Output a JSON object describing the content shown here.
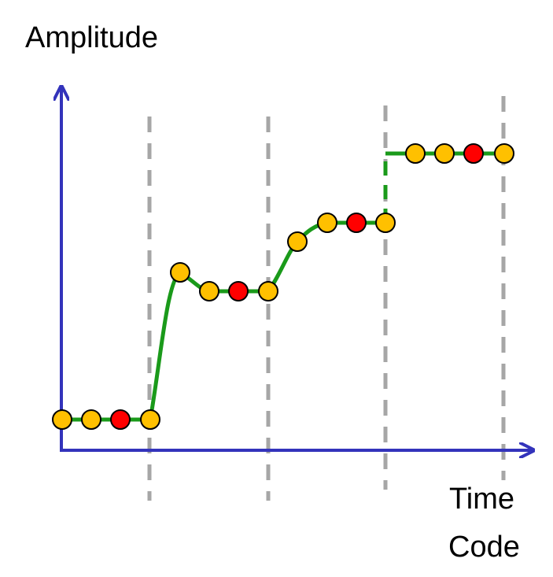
{
  "labels": {
    "y_axis": "Amplitude",
    "x_axis_line1": "Time",
    "x_axis_line2": "Code"
  },
  "colors": {
    "axis": "#3333bb",
    "signal": "#1a9a1a",
    "divider": "#a6a6a6",
    "sample": "#ffc000",
    "reference_sample": "#ff0000",
    "outline": "#000000"
  },
  "samples": [
    {
      "kind": "sample"
    },
    {
      "kind": "sample"
    },
    {
      "kind": "reference"
    },
    {
      "kind": "sample"
    },
    {
      "kind": "sample"
    },
    {
      "kind": "sample"
    },
    {
      "kind": "reference"
    },
    {
      "kind": "sample"
    },
    {
      "kind": "sample"
    },
    {
      "kind": "sample"
    },
    {
      "kind": "reference"
    },
    {
      "kind": "sample"
    },
    {
      "kind": "sample"
    },
    {
      "kind": "sample"
    },
    {
      "kind": "reference"
    },
    {
      "kind": "sample"
    }
  ]
}
